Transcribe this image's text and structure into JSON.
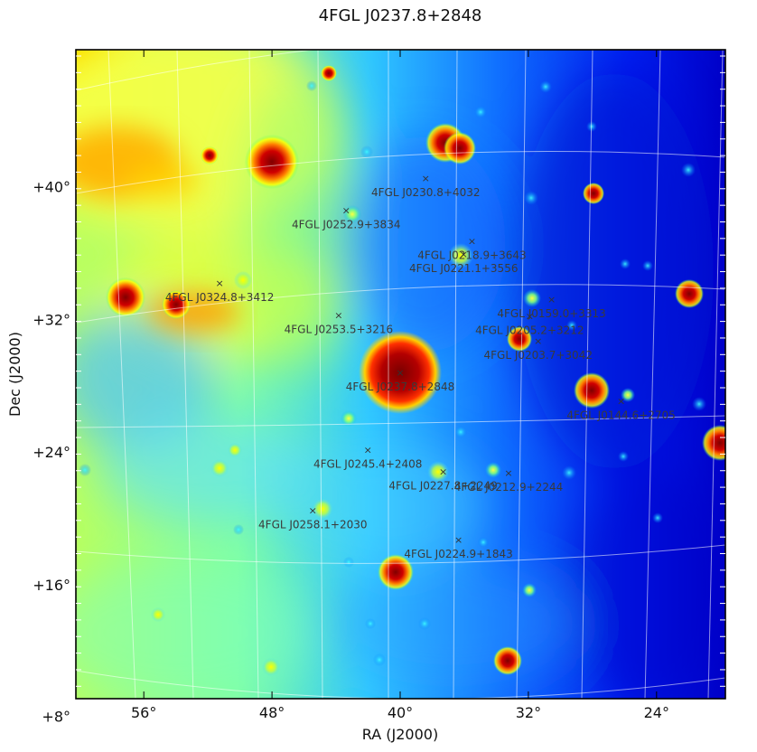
{
  "chart_data": {
    "type": "heatmap",
    "title": "4FGL J0237.8+2848",
    "xlabel": "RA (J2000)",
    "ylabel": "Dec (J2000)",
    "x_ticks": [
      "56°",
      "48°",
      "40°",
      "32°",
      "24°"
    ],
    "y_ticks": [
      "+40°",
      "+32°",
      "+24°",
      "+16°",
      "+8°"
    ],
    "x_tick_values": [
      56,
      48,
      40,
      32,
      24
    ],
    "y_tick_values": [
      40,
      32,
      24,
      16,
      8
    ],
    "colormap": "jet",
    "grid": true,
    "labeled_sources": [
      {
        "name": "4FGL J0230.8+4032",
        "ra": 37.7,
        "dec": 40.53
      },
      {
        "name": "4FGL J0252.9+3834",
        "ra": 43.2,
        "dec": 38.57
      },
      {
        "name": "4FGL J0218.9+3643",
        "ra": 34.7,
        "dec": 36.72
      },
      {
        "name": "4FGL J0221.1+3556",
        "ra": 35.3,
        "dec": 35.94
      },
      {
        "name": "4FGL J0324.8+3412",
        "ra": 51.2,
        "dec": 34.2
      },
      {
        "name": "4FGL J0159.0+3313",
        "ra": 29.8,
        "dec": 33.22
      },
      {
        "name": "4FGL J0253.5+3216",
        "ra": 43.4,
        "dec": 32.27
      },
      {
        "name": "4FGL J0205.2+3212",
        "ra": 31.3,
        "dec": 32.2
      },
      {
        "name": "4FGL J0203.7+3042",
        "ra": 30.9,
        "dec": 30.7
      },
      {
        "name": "4FGL J0237.8+2848",
        "ra": 39.5,
        "dec": 28.8
      },
      {
        "name": "4FGL J0144.6+2705",
        "ra": 26.2,
        "dec": 27.09
      },
      {
        "name": "4FGL J0245.4+2408",
        "ra": 41.4,
        "dec": 24.14
      },
      {
        "name": "4FGL J0212.9+2244",
        "ra": 33.2,
        "dec": 22.74
      },
      {
        "name": "4FGL J0227.8+2249",
        "ra": 37.0,
        "dec": 22.82
      },
      {
        "name": "4FGL J0258.1+2030",
        "ra": 44.5,
        "dec": 20.5
      },
      {
        "name": "4FGL J0224.9+1843",
        "ra": 36.2,
        "dec": 18.72
      }
    ]
  }
}
